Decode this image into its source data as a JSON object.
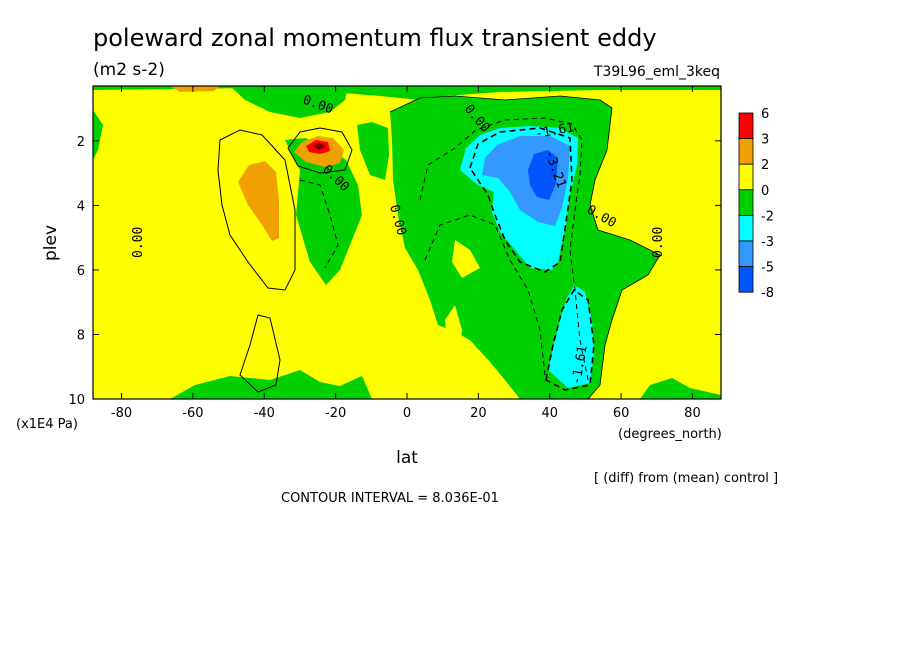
{
  "chart_data": {
    "type": "heatmap",
    "title": "poleward zonal momentum flux transient eddy",
    "subtitle": "(m2 s-2)",
    "run_label": "T39L96_eml_3keq",
    "xlabel": "lat",
    "x_units": "(degrees_north)",
    "ylabel": "plev",
    "y_units": "(x1E4 Pa)",
    "xlim": [
      -88,
      88
    ],
    "ylim": [
      10,
      0.3
    ],
    "x_ticks": [
      -80,
      -60,
      -40,
      -20,
      0,
      20,
      40,
      60,
      80
    ],
    "y_ticks": [
      2,
      4,
      6,
      8,
      10
    ],
    "note": "[ (diff) from (mean) control ]",
    "contour_interval_text": "CONTOUR INTERVAL = 8.036E-01",
    "contour_labels": [
      "0.00",
      "-1.61",
      "-3.21"
    ],
    "colorbar": {
      "levels": [
        "6",
        "3",
        "2",
        "0",
        "-2",
        "-3",
        "-5",
        "-8"
      ],
      "colors": [
        "#ff0000",
        "#f0a000",
        "#ffff00",
        "#00d000",
        "#00ffff",
        "#3399ff",
        "#0055ff"
      ]
    }
  }
}
